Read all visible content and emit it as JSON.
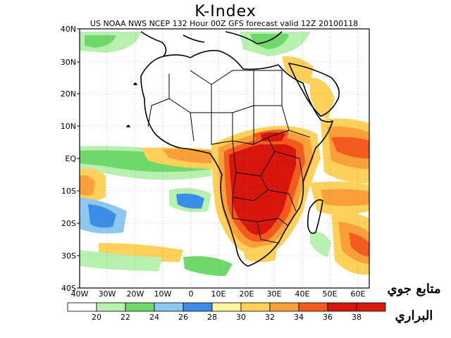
{
  "title": "K-Index",
  "subtitle": "US NOAA NWS NCEP 132 Hour 00Z GFS forecast valid 12Z 20100118",
  "lat_labels": [
    "40N",
    "30N",
    "20N",
    "10N",
    "EQ",
    "10S",
    "20S",
    "30S",
    "40S"
  ],
  "lon_labels": [
    "40W",
    "30W",
    "20W",
    "10W",
    "0",
    "10E",
    "20E",
    "30E",
    "40E",
    "50E",
    "60E"
  ],
  "legend": {
    "levels": [
      "20",
      "22",
      "24",
      "26",
      "28",
      "30",
      "32",
      "34",
      "36",
      "38"
    ],
    "colors": [
      "#ffffff",
      "#b8f0b0",
      "#6ed86a",
      "#8ec8f0",
      "#3a8ee8",
      "#fff3a0",
      "#fdd15a",
      "#fb9f3a",
      "#f25a1e",
      "#d8150a",
      "#d81a0a"
    ]
  },
  "watermark": {
    "line1": "متابع جوي",
    "line2": "البراري"
  }
}
